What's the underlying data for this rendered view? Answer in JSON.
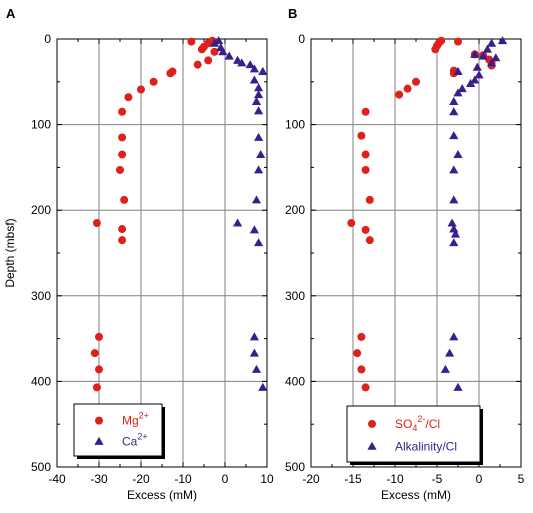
{
  "colors": {
    "red": "#e0201a",
    "blue": "#3a1f8c",
    "grid": "#808080",
    "frame": "#000000"
  },
  "chart_data": [
    {
      "type": "scatter",
      "panel_label": "A",
      "xlabel": "Excess (mM)",
      "ylabel": "Depth (mbsf)",
      "xlim": [
        -40,
        10
      ],
      "ylim": [
        500,
        0
      ],
      "xticks": [
        -40,
        -30,
        -20,
        -10,
        0,
        10
      ],
      "yticks": [
        0,
        100,
        200,
        300,
        400,
        500
      ],
      "grid": true,
      "legend_placement": "bottom-left",
      "series": [
        {
          "name": "Mg2+",
          "legend_base": "Mg",
          "legend_sup": "2+",
          "marker": "circle",
          "color": "#e0201a",
          "points": [
            [
              -3,
              2
            ],
            [
              -8,
              3
            ],
            [
              -4,
              5
            ],
            [
              -5,
              9
            ],
            [
              -5.5,
              12
            ],
            [
              -2.5,
              15
            ],
            [
              -4,
              25
            ],
            [
              -6.5,
              30
            ],
            [
              -12.5,
              38
            ],
            [
              -13,
              40
            ],
            [
              -17,
              50
            ],
            [
              -20,
              59
            ],
            [
              -23,
              68
            ],
            [
              -24.5,
              85
            ],
            [
              -24.5,
              115
            ],
            [
              -24.5,
              135
            ],
            [
              -25,
              153
            ],
            [
              -24,
              188
            ],
            [
              -30.5,
              215
            ],
            [
              -24.5,
              222
            ],
            [
              -24.5,
              235
            ],
            [
              -30,
              348
            ],
            [
              -31,
              367
            ],
            [
              -30,
              386
            ],
            [
              -30.5,
              407
            ]
          ]
        },
        {
          "name": "Ca2+",
          "legend_base": "Ca",
          "legend_sup": "2+",
          "marker": "triangle",
          "color": "#3a1f8c",
          "points": [
            [
              -1.5,
              2
            ],
            [
              -2.5,
              5
            ],
            [
              -1,
              10
            ],
            [
              -0.5,
              15
            ],
            [
              1,
              20
            ],
            [
              3,
              25
            ],
            [
              4,
              28
            ],
            [
              6,
              30
            ],
            [
              7,
              35
            ],
            [
              9,
              38
            ],
            [
              7,
              48
            ],
            [
              8,
              57
            ],
            [
              8,
              65
            ],
            [
              7.5,
              73
            ],
            [
              8,
              84
            ],
            [
              8,
              115
            ],
            [
              8.5,
              135
            ],
            [
              8,
              153
            ],
            [
              7.5,
              188
            ],
            [
              3,
              215
            ],
            [
              7,
              223
            ],
            [
              8,
              238
            ],
            [
              7,
              348
            ],
            [
              7,
              367
            ],
            [
              7.5,
              386
            ],
            [
              9,
              407
            ]
          ]
        }
      ]
    },
    {
      "type": "scatter",
      "panel_label": "B",
      "xlabel": "Excess (mM)",
      "ylabel": "",
      "xlim": [
        -20,
        5
      ],
      "ylim": [
        500,
        0
      ],
      "xticks": [
        -20,
        -15,
        -10,
        -5,
        0,
        5
      ],
      "yticks": [
        0,
        100,
        200,
        300,
        400,
        500
      ],
      "grid": true,
      "legend_placement": "bottom-right",
      "series": [
        {
          "name": "SO42-/Cl",
          "legend_base": "SO",
          "legend_sub": "4",
          "legend_sup": "2-",
          "legend_tail": "/Cl",
          "marker": "circle",
          "color": "#e0201a",
          "points": [
            [
              -4.5,
              2
            ],
            [
              -2.5,
              3
            ],
            [
              -4.8,
              5
            ],
            [
              -5,
              8
            ],
            [
              -5.2,
              12
            ],
            [
              -0.5,
              18
            ],
            [
              0.5,
              19
            ],
            [
              1.2,
              24
            ],
            [
              1.5,
              28
            ],
            [
              1.5,
              31
            ],
            [
              -3,
              37
            ],
            [
              -3,
              40
            ],
            [
              -7.5,
              50
            ],
            [
              -8.5,
              58
            ],
            [
              -9.5,
              65
            ],
            [
              -13.5,
              85
            ],
            [
              -14,
              113
            ],
            [
              -13.5,
              135
            ],
            [
              -13.5,
              153
            ],
            [
              -13,
              188
            ],
            [
              -15.2,
              215
            ],
            [
              -13.5,
              223
            ],
            [
              -13,
              235
            ],
            [
              -14,
              348
            ],
            [
              -14.5,
              367
            ],
            [
              -14,
              386
            ],
            [
              -13.5,
              407
            ]
          ]
        },
        {
          "name": "Alkalinity/Cl",
          "legend_base": "Alkalinity/Cl",
          "marker": "triangle",
          "color": "#3a1f8c",
          "points": [
            [
              2.8,
              2
            ],
            [
              1.5,
              5
            ],
            [
              1,
              12
            ],
            [
              -0.5,
              18
            ],
            [
              0.5,
              20
            ],
            [
              2,
              22
            ],
            [
              1.5,
              28
            ],
            [
              -0.2,
              33
            ],
            [
              -2.5,
              38
            ],
            [
              0,
              42
            ],
            [
              -0.5,
              48
            ],
            [
              -1,
              52
            ],
            [
              -2,
              58
            ],
            [
              -2.5,
              63
            ],
            [
              -3,
              73
            ],
            [
              -3,
              85
            ],
            [
              -3,
              113
            ],
            [
              -2.5,
              135
            ],
            [
              -3,
              153
            ],
            [
              -3,
              188
            ],
            [
              -3.2,
              215
            ],
            [
              -3,
              222
            ],
            [
              -2.8,
              228
            ],
            [
              -3,
              238
            ],
            [
              -3,
              348
            ],
            [
              -3.5,
              367
            ],
            [
              -4,
              386
            ],
            [
              -2.5,
              407
            ]
          ]
        }
      ]
    }
  ]
}
